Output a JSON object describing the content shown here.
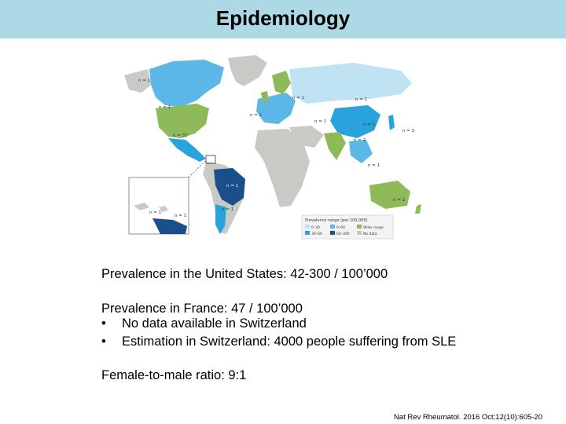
{
  "slide": {
    "title": "Epidemiology"
  },
  "map": {
    "legend_title": "Prevalence range (per 100,000)",
    "legend_items": [
      {
        "label": "0–30",
        "color": "#bfe3f3"
      },
      {
        "label": "30–60",
        "color": "#29a3dc"
      },
      {
        "label": "0–60",
        "color": "#5db7e6"
      },
      {
        "label": "60–300",
        "color": "#1a4f8c"
      },
      {
        "label": "Wide range",
        "color": "#8fba5a"
      },
      {
        "label": "No data",
        "color": "#c9c9c6"
      }
    ],
    "annotations": [
      "n = 1",
      "n = 1",
      "n = 32",
      "n = 1",
      "n = 1",
      "n = 1",
      "n = 1",
      "n = 2",
      "n = 3",
      "n = 1",
      "n = 2",
      "n = 1",
      "n = 1",
      "n = 1",
      "n = 1",
      "n = 1"
    ]
  },
  "body": {
    "us_prevalence": "Prevalence in the United States: 42-300 / 100’000",
    "france_prevalence": "Prevalence in France: 47 / 100’000",
    "bullets": [
      {
        "symbol": "•",
        "text": "No data available in Switzerland"
      },
      {
        "symbol": "•",
        "text": "Estimation in Switzerland: 4000 people suffering from SLE"
      }
    ],
    "ratio": "Female-to-male ratio: 9:1"
  },
  "citation": "Nat Rev Rheumatol. 2016 Oct;12(10):605-20"
}
